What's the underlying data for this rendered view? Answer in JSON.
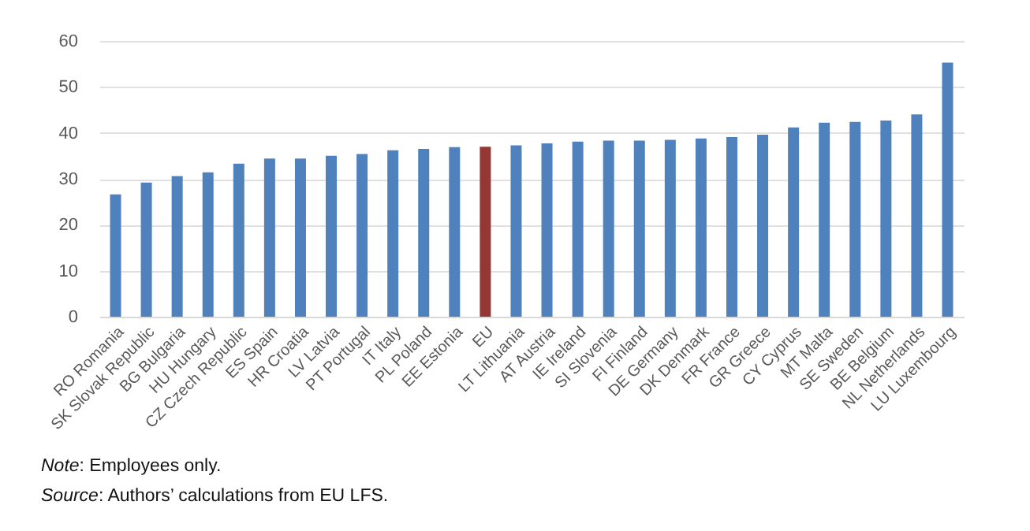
{
  "chart_data": {
    "type": "bar",
    "categories": [
      "RO Romania",
      "SK Slovak Republic",
      "BG Bulgaria",
      "HU Hungary",
      "CZ Czech Republic",
      "ES Spain",
      "HR Croatia",
      "LV Latvia",
      "PT Portugal",
      "IT Italy",
      "PL Poland",
      "EE Estonia",
      "EU",
      "LT Lithuania",
      "AT Austria",
      "IE Ireland",
      "SI Slovenia",
      "FI Finland",
      "DE Germany",
      "DK Denmark",
      "FR France",
      "GR Greece",
      "CY Cyprus",
      "MT Malta",
      "SE Sweden",
      "BE Belgium",
      "NL Netherlands",
      "LU Luxembourg"
    ],
    "values": [
      26.6,
      29.2,
      30.6,
      31.4,
      33.3,
      34.4,
      34.4,
      35.0,
      35.4,
      36.2,
      36.5,
      36.9,
      37.0,
      37.3,
      37.7,
      38.1,
      38.3,
      38.3,
      38.5,
      38.8,
      39.1,
      39.6,
      41.2,
      42.2,
      42.4,
      42.7,
      44.0,
      55.3
    ],
    "colors": [
      "#4f81bd",
      "#4f81bd",
      "#4f81bd",
      "#4f81bd",
      "#4f81bd",
      "#4f81bd",
      "#4f81bd",
      "#4f81bd",
      "#4f81bd",
      "#4f81bd",
      "#4f81bd",
      "#4f81bd",
      "#953735",
      "#4f81bd",
      "#4f81bd",
      "#4f81bd",
      "#4f81bd",
      "#4f81bd",
      "#4f81bd",
      "#4f81bd",
      "#4f81bd",
      "#4f81bd",
      "#4f81bd",
      "#4f81bd",
      "#4f81bd",
      "#4f81bd",
      "#4f81bd",
      "#4f81bd"
    ],
    "ylim": [
      0,
      60
    ],
    "yticks": [
      0,
      10,
      20,
      30,
      40,
      50,
      60
    ],
    "grid": "y",
    "annotations": [
      "Note: Employees only.",
      "Source: Authors’ calculations from EU LFS."
    ]
  }
}
